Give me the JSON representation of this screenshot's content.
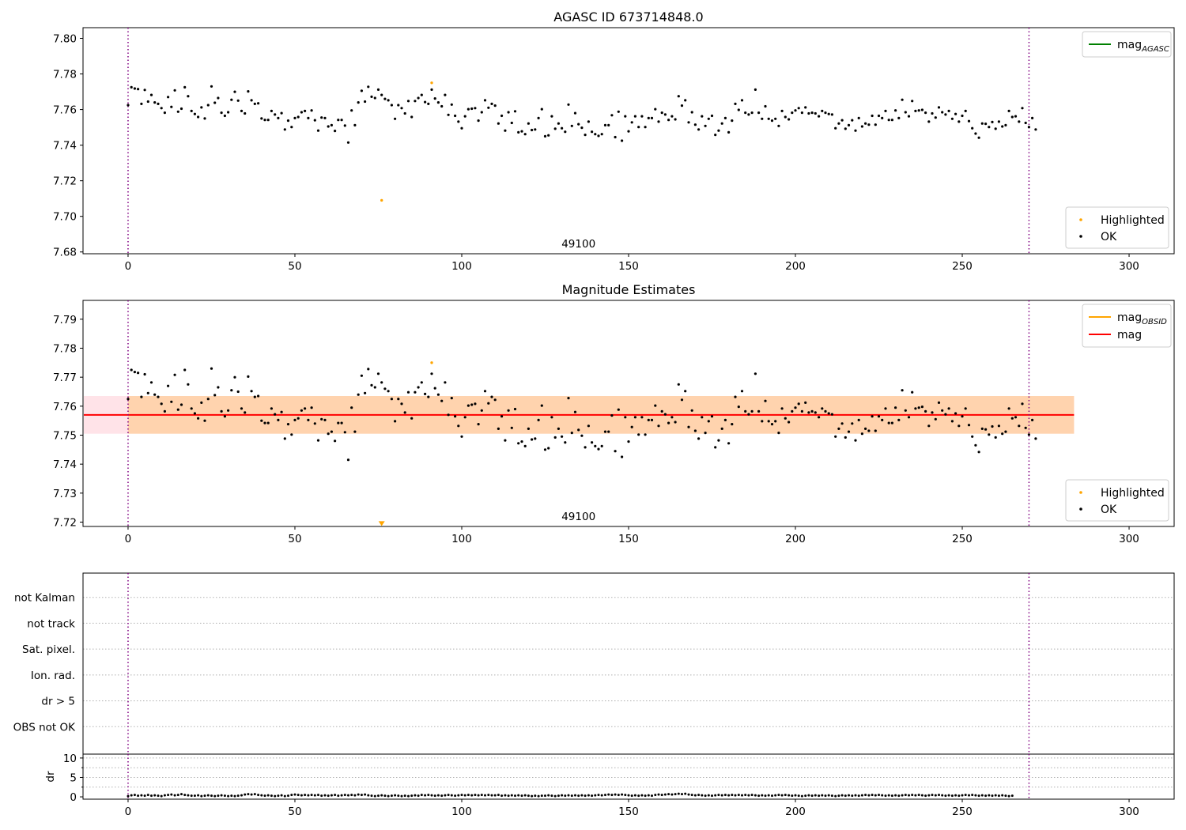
{
  "chart_data": [
    {
      "type": "scatter",
      "title": "AGASC ID 673714848.0",
      "xlabel": "",
      "ylabel": "",
      "xlim": [
        -13.5,
        313.5
      ],
      "ylim": [
        7.679,
        7.806
      ],
      "xticks": [
        0,
        50,
        100,
        150,
        200,
        250,
        300
      ],
      "yticks": [
        7.68,
        7.7,
        7.72,
        7.74,
        7.76,
        7.78,
        7.8
      ],
      "ytick_decimals": 2,
      "grid": false,
      "vlines": [
        0,
        270
      ],
      "obsid_label": "49100",
      "obsid_label_x": 135,
      "legend_lines": [
        {
          "name": "mag",
          "sub": "AGASC",
          "color": "#008000"
        }
      ],
      "legend_points": [
        {
          "name": "Highlighted",
          "color": "#FFA500"
        },
        {
          "name": "OK",
          "color": "#000000"
        }
      ],
      "legend_placement": "top-right / bottom-right",
      "highlighted": [
        {
          "x": 76,
          "y": 7.709
        },
        {
          "x": 91,
          "y": 7.775
        }
      ]
    },
    {
      "type": "scatter",
      "title": "Magnitude Estimates",
      "xlabel": "",
      "ylabel": "",
      "xlim": [
        -13.5,
        313.5
      ],
      "ylim": [
        7.7185,
        7.7965
      ],
      "xticks": [
        0,
        50,
        100,
        150,
        200,
        250,
        300
      ],
      "yticks": [
        7.72,
        7.73,
        7.74,
        7.75,
        7.76,
        7.77,
        7.78,
        7.79
      ],
      "ytick_decimals": 2,
      "grid": false,
      "vlines": [
        0,
        270
      ],
      "obsid_label": "49100",
      "obsid_label_x": 135,
      "mag_line": {
        "value": 7.757,
        "color": "#FF0000",
        "x": [
          -13.5,
          283.5
        ]
      },
      "band_outer": {
        "low": 7.7505,
        "high": 7.7635,
        "x": [
          -13.5,
          283.5
        ],
        "color": "#FFC0CB"
      },
      "band_inner": {
        "low": 7.7505,
        "high": 7.7635,
        "x": [
          0,
          283.5
        ],
        "color": "#FFA500"
      },
      "legend_lines": [
        {
          "name": "mag",
          "sub": "OBSID",
          "color": "#FFA500"
        },
        {
          "name": "mag",
          "sub": "",
          "color": "#FF0000"
        }
      ],
      "legend_points": [
        {
          "name": "Highlighted",
          "color": "#FFA500"
        },
        {
          "name": "OK",
          "color": "#000000"
        }
      ],
      "legend_placement": "top-right / bottom-right",
      "highlighted": [
        {
          "x": 91,
          "y": 7.775
        }
      ],
      "offscale_marker": {
        "x": 76,
        "y": 7.7195,
        "color": "#FFA500"
      }
    },
    {
      "type": "table",
      "title": "",
      "flag_labels": [
        "not Kalman",
        "not track",
        "Sat. pixel.",
        "Ion. rad.",
        "dr > 5",
        "OBS not OK"
      ],
      "grid": true,
      "vlines": [
        0,
        270
      ],
      "xlim": [
        -13.5,
        313.5
      ]
    },
    {
      "type": "scatter",
      "title": "",
      "xlabel": "",
      "ylabel": "dr",
      "xlim": [
        -13.5,
        313.5
      ],
      "ylim": [
        -0.6,
        11
      ],
      "xticks": [
        0,
        50,
        100,
        150,
        200,
        250,
        300
      ],
      "yticks": [
        0,
        5,
        10
      ],
      "grid": true,
      "vlines": [
        0,
        270
      ]
    }
  ],
  "series": {
    "name": "OK",
    "color": "#000000",
    "x_start": 0,
    "x_step": 1,
    "mag": [
      7.7625,
      7.7725,
      7.7718,
      7.7715,
      7.7632,
      7.771,
      7.7645,
      7.7682,
      7.764,
      7.7632,
      7.7608,
      7.7582,
      7.767,
      7.7615,
      7.7708,
      7.7588,
      7.7605,
      7.7725,
      7.7675,
      7.7592,
      7.7575,
      7.7558,
      7.7612,
      7.755,
      7.7625,
      7.773,
      7.7638,
      7.7665,
      7.7582,
      7.7565,
      7.7585,
      7.7655,
      7.77,
      7.765,
      7.7592,
      7.7578,
      7.7702,
      7.7652,
      7.7632,
      7.7635,
      7.755,
      7.7542,
      7.7542,
      7.7592,
      7.7572,
      7.7552,
      7.758,
      7.7488,
      7.7538,
      7.7502,
      7.7552,
      7.7558,
      7.7585,
      7.7592,
      7.7552,
      7.7595,
      7.754,
      7.7482,
      7.7555,
      7.7552,
      7.7505,
      7.7512,
      7.748,
      7.7542,
      7.7542,
      7.751,
      7.7415,
      7.7595,
      7.7512,
      7.764,
      7.7705,
      7.7645,
      7.7728,
      7.7672,
      7.7665,
      7.7712,
      7.7682,
      7.766,
      7.7652,
      7.7625,
      7.7548,
      7.7625,
      7.7608,
      7.7578,
      7.7648,
      7.7558,
      7.7648,
      7.7665,
      7.7682,
      7.7642,
      7.7632,
      7.7712,
      7.7662,
      7.764,
      7.7618,
      7.7682,
      7.757,
      7.7628,
      7.7565,
      7.7532,
      7.7495,
      7.7562,
      7.7602,
      7.7605,
      7.7608,
      7.7538,
      7.7585,
      7.7652,
      7.761,
      7.7632,
      7.7622,
      7.7522,
      7.7565,
      7.7482,
      7.7585,
      7.7525,
      7.759,
      7.7472,
      7.7478,
      7.7462,
      7.7522,
      7.7485,
      7.7488,
      7.7552,
      7.7602,
      7.745,
      7.7455,
      7.7562,
      7.7492,
      7.7522,
      7.7495,
      7.7475,
      7.7628,
      7.7508,
      7.758,
      7.7518,
      7.7498,
      7.7458,
      7.7532,
      7.7475,
      7.7462,
      7.7452,
      7.7462,
      7.7512,
      7.7512,
      7.7568,
      7.7445,
      7.7588,
      7.7425,
      7.7562,
      7.7478,
      7.7528,
      7.7562,
      7.7502,
      7.7562,
      7.7502,
      7.7552,
      7.7552,
      7.7602,
      7.7532,
      7.7582,
      7.7572,
      7.7542,
      7.7562,
      7.7545,
      7.7675,
      7.7622,
      7.7652,
      7.7528,
      7.7585,
      7.7515,
      7.7488,
      7.7562,
      7.7508,
      7.7548,
      7.7565,
      7.7458,
      7.7482,
      7.7522,
      7.7552,
      7.7472,
      7.7538,
      7.7632,
      7.7598,
      7.7652,
      7.7582,
      7.7572,
      7.7582,
      7.7712,
      7.7582,
      7.7548,
      7.7618,
      7.7548,
      7.7538,
      7.7548,
      7.7508,
      7.7592,
      7.7558,
      7.7545,
      7.7582,
      7.7595,
      7.7608,
      7.7582,
      7.7612,
      7.7578,
      7.7582,
      7.7578,
      7.7562,
      7.7592,
      7.7582,
      7.7575,
      7.7572,
      7.7495,
      7.7522,
      7.754,
      7.7492,
      7.7512,
      7.754,
      7.7482,
      7.7552,
      7.7505,
      7.7522,
      7.7515,
      7.7565,
      7.7515,
      7.7565,
      7.7552,
      7.7592,
      7.7542,
      7.7542,
      7.7595,
      7.7552,
      7.7655,
      7.7585,
      7.7562,
      7.7648,
      7.7592,
      7.7595,
      7.7598,
      7.7582,
      7.7532,
      7.7578,
      7.7555,
      7.7612,
      7.7585,
      7.7572,
      7.7592,
      7.7548,
      7.7575,
      7.7532,
      7.7565,
      7.7592,
      7.7535,
      7.7495,
      7.7465,
      7.7442,
      7.7522,
      7.752,
      7.7502,
      7.753,
      7.7492,
      7.7532,
      7.7505,
      7.7512,
      7.7592,
      7.7558,
      7.7562,
      7.7532,
      7.7608,
      7.7525,
      7.7502,
      7.7552,
      7.7488
    ],
    "dr": [
      0.2,
      0.4,
      0.5,
      0.3,
      0.4,
      0.3,
      0.5,
      0.3,
      0.4,
      0.3,
      0.2,
      0.4,
      0.5,
      0.6,
      0.4,
      0.5,
      0.7,
      0.5,
      0.4,
      0.3,
      0.3,
      0.4,
      0.2,
      0.3,
      0.4,
      0.3,
      0.2,
      0.3,
      0.4,
      0.3,
      0.2,
      0.3,
      0.2,
      0.3,
      0.4,
      0.6,
      0.7,
      0.6,
      0.7,
      0.5,
      0.4,
      0.3,
      0.4,
      0.3,
      0.2,
      0.3,
      0.4,
      0.2,
      0.3,
      0.5,
      0.6,
      0.5,
      0.4,
      0.5,
      0.4,
      0.5,
      0.4,
      0.5,
      0.3,
      0.4,
      0.3,
      0.4,
      0.5,
      0.3,
      0.4,
      0.5,
      0.4,
      0.5,
      0.4,
      0.6,
      0.5,
      0.6,
      0.4,
      0.3,
      0.2,
      0.3,
      0.4,
      0.3,
      0.2,
      0.3,
      0.4,
      0.3,
      0.2,
      0.3,
      0.2,
      0.3,
      0.4,
      0.3,
      0.5,
      0.4,
      0.5,
      0.4,
      0.3,
      0.4,
      0.3,
      0.4,
      0.5,
      0.4,
      0.3,
      0.4,
      0.5,
      0.4,
      0.5,
      0.4,
      0.5,
      0.4,
      0.5,
      0.4,
      0.5,
      0.4,
      0.4,
      0.5,
      0.3,
      0.4,
      0.3,
      0.4,
      0.3,
      0.4,
      0.3,
      0.4,
      0.3,
      0.2,
      0.3,
      0.2,
      0.3,
      0.3,
      0.4,
      0.3,
      0.2,
      0.3,
      0.4,
      0.3,
      0.4,
      0.3,
      0.4,
      0.3,
      0.4,
      0.3,
      0.4,
      0.3,
      0.4,
      0.5,
      0.4,
      0.5,
      0.6,
      0.5,
      0.6,
      0.5,
      0.6,
      0.5,
      0.4,
      0.3,
      0.4,
      0.3,
      0.4,
      0.3,
      0.4,
      0.3,
      0.5,
      0.6,
      0.5,
      0.6,
      0.7,
      0.6,
      0.7,
      0.8,
      0.7,
      0.8,
      0.6,
      0.5,
      0.4,
      0.5,
      0.4,
      0.3,
      0.4,
      0.3,
      0.4,
      0.5,
      0.4,
      0.5,
      0.4,
      0.5,
      0.4,
      0.5,
      0.4,
      0.5,
      0.4,
      0.5,
      0.4,
      0.3,
      0.4,
      0.3,
      0.4,
      0.3,
      0.4,
      0.5,
      0.4,
      0.5,
      0.4,
      0.3,
      0.4,
      0.3,
      0.2,
      0.3,
      0.4,
      0.3,
      0.4,
      0.3,
      0.4,
      0.3,
      0.4,
      0.3,
      0.2,
      0.3,
      0.4,
      0.3,
      0.4,
      0.3,
      0.4,
      0.3,
      0.4,
      0.5,
      0.4,
      0.5,
      0.4,
      0.5,
      0.4,
      0.3,
      0.4,
      0.3,
      0.4,
      0.3,
      0.4,
      0.5,
      0.4,
      0.5,
      0.4,
      0.5,
      0.4,
      0.3,
      0.4,
      0.5,
      0.4,
      0.5,
      0.4,
      0.3,
      0.4,
      0.3,
      0.4,
      0.3,
      0.4,
      0.5,
      0.4,
      0.5,
      0.4,
      0.3,
      0.4,
      0.3,
      0.4,
      0.3,
      0.4,
      0.3,
      0.4,
      0.3,
      0.2,
      0.3
    ]
  }
}
